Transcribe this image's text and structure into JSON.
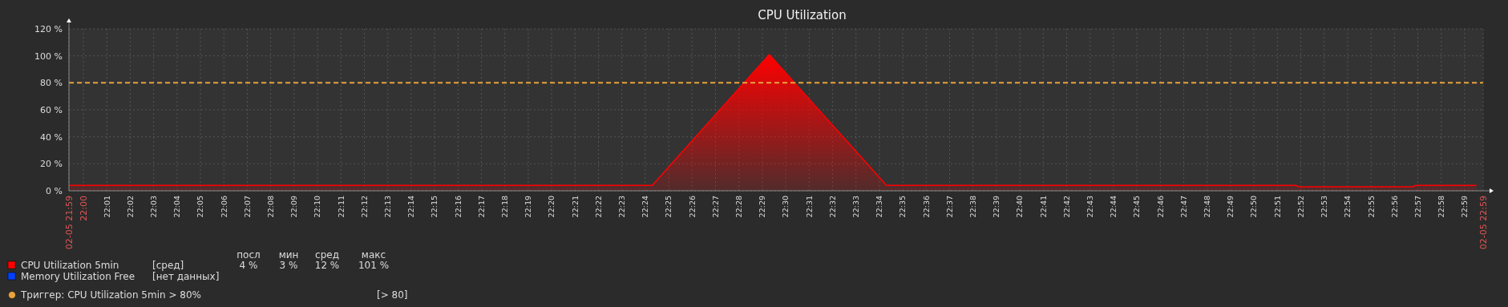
{
  "chart_data": {
    "type": "area",
    "title": "CPU Utilization",
    "x": [
      21.9897,
      22.405,
      22.4883,
      22.5717,
      22.8633,
      22.865,
      22.9467,
      22.9483,
      22.9917
    ],
    "series": [
      {
        "name": "CPU Utilization 5min",
        "color": "#ff0000",
        "values": [
          4,
          4,
          101,
          4,
          4,
          3,
          3,
          4,
          4
        ]
      },
      {
        "name": "Memory Utilization Free",
        "color": "#0040ff",
        "values": [
          null,
          null,
          null,
          null,
          null,
          null,
          null,
          null,
          null
        ]
      }
    ],
    "xlim": [
      21.9897,
      22.9965
    ],
    "xticks": [
      {
        "value": 21.9897,
        "label": "02-05 21:59"
      },
      {
        "value": 22,
        "label": "22:00"
      },
      {
        "value": 22.0167,
        "label": "22:01"
      },
      {
        "value": 22.0333,
        "label": "22:02"
      },
      {
        "value": 22.05,
        "label": "22:03"
      },
      {
        "value": 22.0667,
        "label": "22:04"
      },
      {
        "value": 22.0833,
        "label": "22:05"
      },
      {
        "value": 22.1,
        "label": "22:06"
      },
      {
        "value": 22.1167,
        "label": "22:07"
      },
      {
        "value": 22.1333,
        "label": "22:08"
      },
      {
        "value": 22.15,
        "label": "22:09"
      },
      {
        "value": 22.1667,
        "label": "22:10"
      },
      {
        "value": 22.1833,
        "label": "22:11"
      },
      {
        "value": 22.2,
        "label": "22:12"
      },
      {
        "value": 22.2167,
        "label": "22:13"
      },
      {
        "value": 22.2333,
        "label": "22:14"
      },
      {
        "value": 22.25,
        "label": "22:15"
      },
      {
        "value": 22.2667,
        "label": "22:16"
      },
      {
        "value": 22.2833,
        "label": "22:17"
      },
      {
        "value": 22.3,
        "label": "22:18"
      },
      {
        "value": 22.3167,
        "label": "22:19"
      },
      {
        "value": 22.3333,
        "label": "22:20"
      },
      {
        "value": 22.35,
        "label": "22:21"
      },
      {
        "value": 22.3667,
        "label": "22:22"
      },
      {
        "value": 22.3833,
        "label": "22:23"
      },
      {
        "value": 22.4,
        "label": "22:24"
      },
      {
        "value": 22.4167,
        "label": "22:25"
      },
      {
        "value": 22.4333,
        "label": "22:26"
      },
      {
        "value": 22.45,
        "label": "22:27"
      },
      {
        "value": 22.4667,
        "label": "22:28"
      },
      {
        "value": 22.4833,
        "label": "22:29"
      },
      {
        "value": 22.5,
        "label": "22:30"
      },
      {
        "value": 22.5167,
        "label": "22:31"
      },
      {
        "value": 22.5333,
        "label": "22:32"
      },
      {
        "value": 22.55,
        "label": "22:33"
      },
      {
        "value": 22.5667,
        "label": "22:34"
      },
      {
        "value": 22.5833,
        "label": "22:35"
      },
      {
        "value": 22.6,
        "label": "22:36"
      },
      {
        "value": 22.6167,
        "label": "22:37"
      },
      {
        "value": 22.6333,
        "label": "22:38"
      },
      {
        "value": 22.65,
        "label": "22:39"
      },
      {
        "value": 22.6667,
        "label": "22:40"
      },
      {
        "value": 22.6833,
        "label": "22:41"
      },
      {
        "value": 22.7,
        "label": "22:42"
      },
      {
        "value": 22.7167,
        "label": "22:43"
      },
      {
        "value": 22.7333,
        "label": "22:44"
      },
      {
        "value": 22.75,
        "label": "22:45"
      },
      {
        "value": 22.7667,
        "label": "22:46"
      },
      {
        "value": 22.7833,
        "label": "22:47"
      },
      {
        "value": 22.8,
        "label": "22:48"
      },
      {
        "value": 22.8167,
        "label": "22:49"
      },
      {
        "value": 22.8333,
        "label": "22:50"
      },
      {
        "value": 22.85,
        "label": "22:51"
      },
      {
        "value": 22.8667,
        "label": "22:52"
      },
      {
        "value": 22.8833,
        "label": "22:53"
      },
      {
        "value": 22.9,
        "label": "22:54"
      },
      {
        "value": 22.9167,
        "label": "22:55"
      },
      {
        "value": 22.9333,
        "label": "22:56"
      },
      {
        "value": 22.95,
        "label": "22:57"
      },
      {
        "value": 22.9667,
        "label": "22:58"
      },
      {
        "value": 22.9833,
        "label": "22:59"
      },
      {
        "value": 22.9965,
        "label": "02-05 22:59"
      }
    ],
    "ylim": [
      0,
      120
    ],
    "yticks": [
      {
        "value": 0,
        "label": "0 %"
      },
      {
        "value": 20,
        "label": "20 %"
      },
      {
        "value": 40,
        "label": "40 %"
      },
      {
        "value": 60,
        "label": "60 %"
      },
      {
        "value": 80,
        "label": "80 %"
      },
      {
        "value": 100,
        "label": "100 %"
      },
      {
        "value": 120,
        "label": "120 %"
      }
    ],
    "grid": true,
    "legend": "bottom",
    "ref_lines": [
      {
        "axis": "y",
        "value": 80,
        "label": "Триггер: CPU Utilization 5min > 80%",
        "color": "#e8a33c",
        "line_style": "dashed"
      }
    ],
    "annotations": [
      "посл",
      "мин",
      "сред",
      "макс",
      "4 %",
      "3 %",
      "12 %",
      "101 %",
      "[сред]",
      "[нет данных]",
      "[> 80]"
    ]
  }
}
